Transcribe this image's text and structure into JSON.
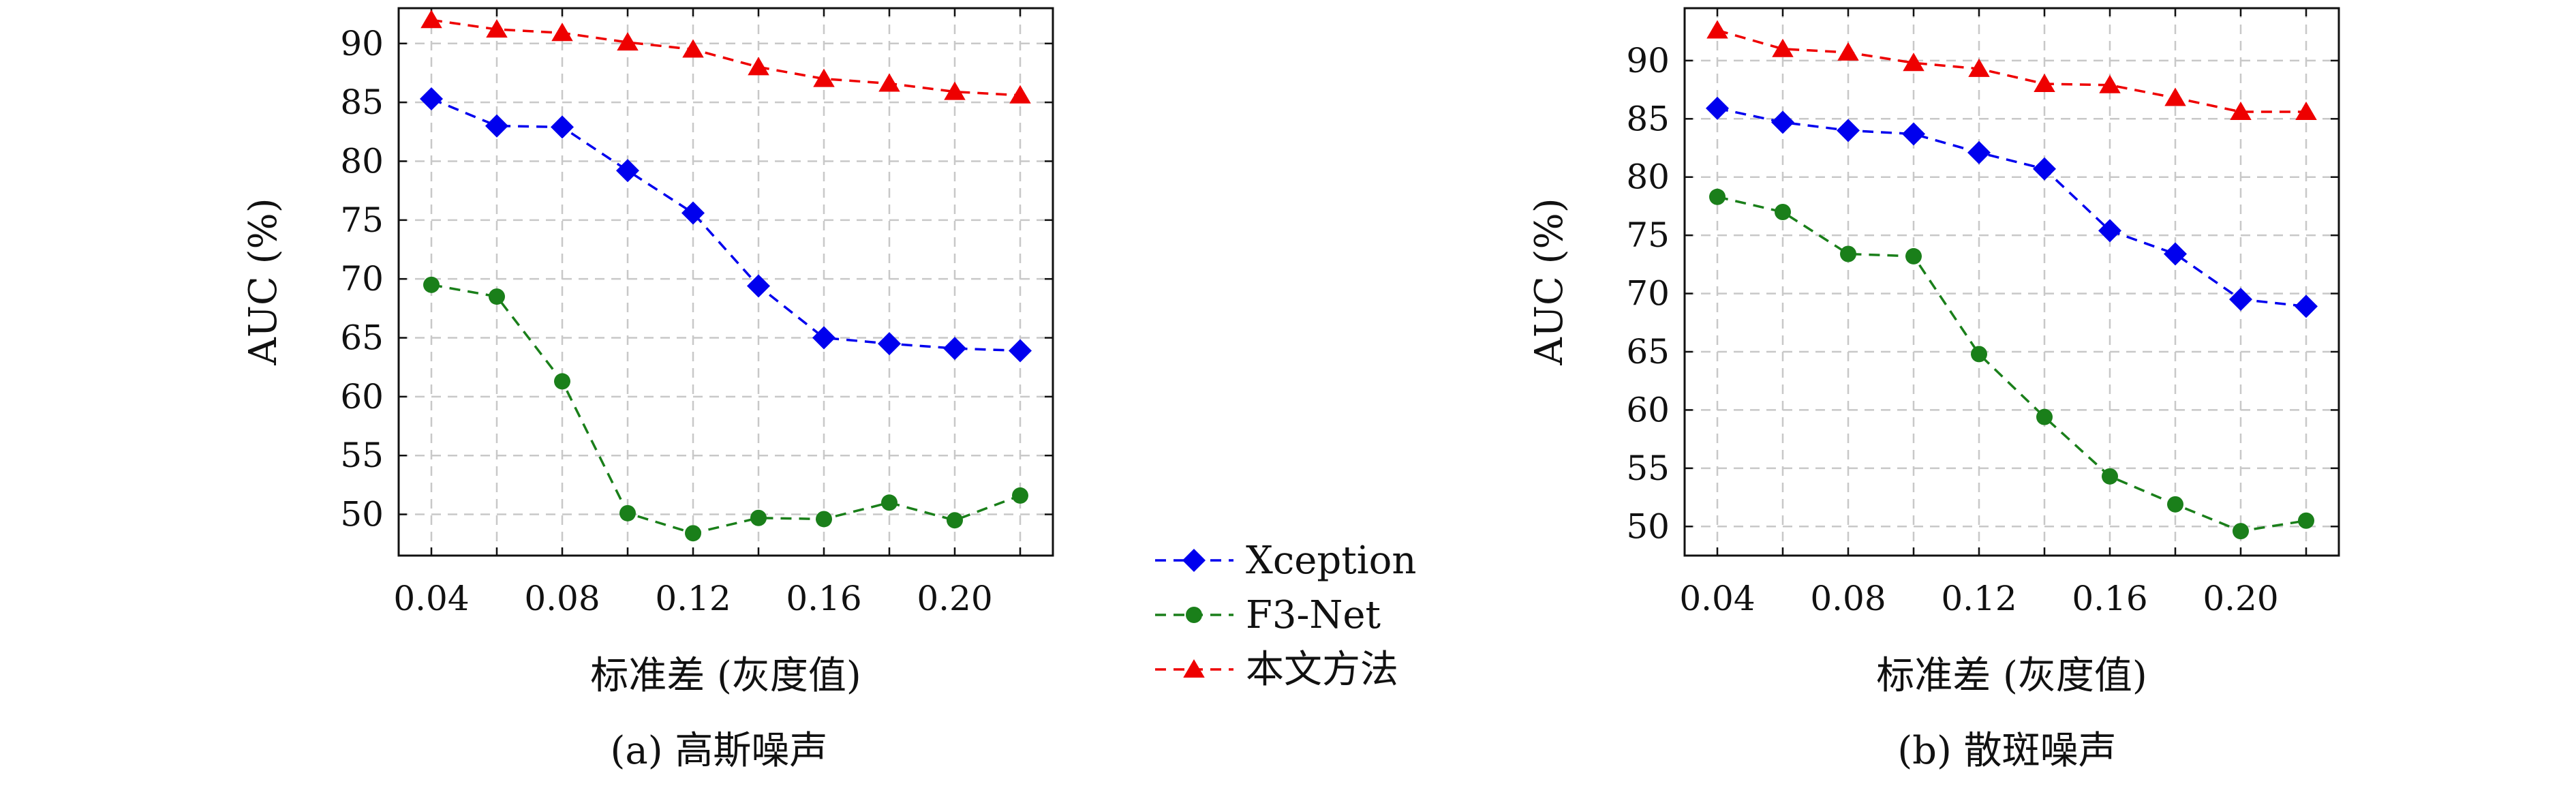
{
  "legend": [
    "Xception",
    "F3-Net",
    "本文方法"
  ],
  "colors": {
    "Xception": "#0000ee",
    "F3-Net": "#1a7f1a",
    "本文方法": "#ee0000"
  },
  "chart_data": [
    {
      "type": "line",
      "caption": "(a) 高斯噪声",
      "xlabel": "标准差 (灰度值)",
      "ylabel": "AUC (%)",
      "x": [
        0.04,
        0.06,
        0.08,
        0.1,
        0.12,
        0.14,
        0.16,
        0.18,
        0.2,
        0.22
      ],
      "xticks": [
        "0.04",
        "0.08",
        "0.12",
        "0.16",
        "0.20"
      ],
      "yticks": [
        "50",
        "55",
        "60",
        "65",
        "70",
        "75",
        "80",
        "85",
        "90"
      ],
      "xlim": [
        0.03,
        0.23
      ],
      "ylim": [
        46.5,
        93.0
      ],
      "grid": true,
      "series": [
        {
          "name": "Xception",
          "marker": "diamond",
          "values": [
            85.3,
            83.0,
            82.9,
            79.2,
            75.6,
            69.4,
            65.0,
            64.5,
            64.1,
            63.9
          ]
        },
        {
          "name": "F3-Net",
          "marker": "circle",
          "values": [
            69.5,
            68.5,
            61.3,
            50.1,
            48.4,
            49.7,
            49.6,
            51.0,
            49.5,
            51.6
          ]
        },
        {
          "name": "本文方法",
          "marker": "triangle",
          "values": [
            92.0,
            91.2,
            90.9,
            90.1,
            89.5,
            88.0,
            87.0,
            86.6,
            85.9,
            85.6
          ]
        }
      ]
    },
    {
      "type": "line",
      "caption": "(b) 散斑噪声",
      "xlabel": "标准差 (灰度值)",
      "ylabel": "AUC (%)",
      "x": [
        0.04,
        0.06,
        0.08,
        0.1,
        0.12,
        0.14,
        0.16,
        0.18,
        0.2,
        0.22
      ],
      "xticks": [
        "0.04",
        "0.08",
        "0.12",
        "0.16",
        "0.20"
      ],
      "yticks": [
        "50",
        "55",
        "60",
        "65",
        "70",
        "75",
        "80",
        "85",
        "90"
      ],
      "xlim": [
        0.03,
        0.23
      ],
      "ylim": [
        47.5,
        94.5
      ],
      "grid": true,
      "series": [
        {
          "name": "Xception",
          "marker": "diamond",
          "values": [
            85.9,
            84.7,
            84.0,
            83.7,
            82.1,
            80.7,
            75.4,
            73.4,
            69.5,
            68.9
          ]
        },
        {
          "name": "F3-Net",
          "marker": "circle",
          "values": [
            78.3,
            77.0,
            73.4,
            73.2,
            64.8,
            59.4,
            54.3,
            51.9,
            49.6,
            50.5
          ]
        },
        {
          "name": "本文方法",
          "marker": "triangle",
          "values": [
            92.6,
            91.0,
            90.7,
            89.8,
            89.3,
            88.0,
            87.9,
            86.8,
            85.6,
            85.6
          ]
        }
      ]
    }
  ]
}
